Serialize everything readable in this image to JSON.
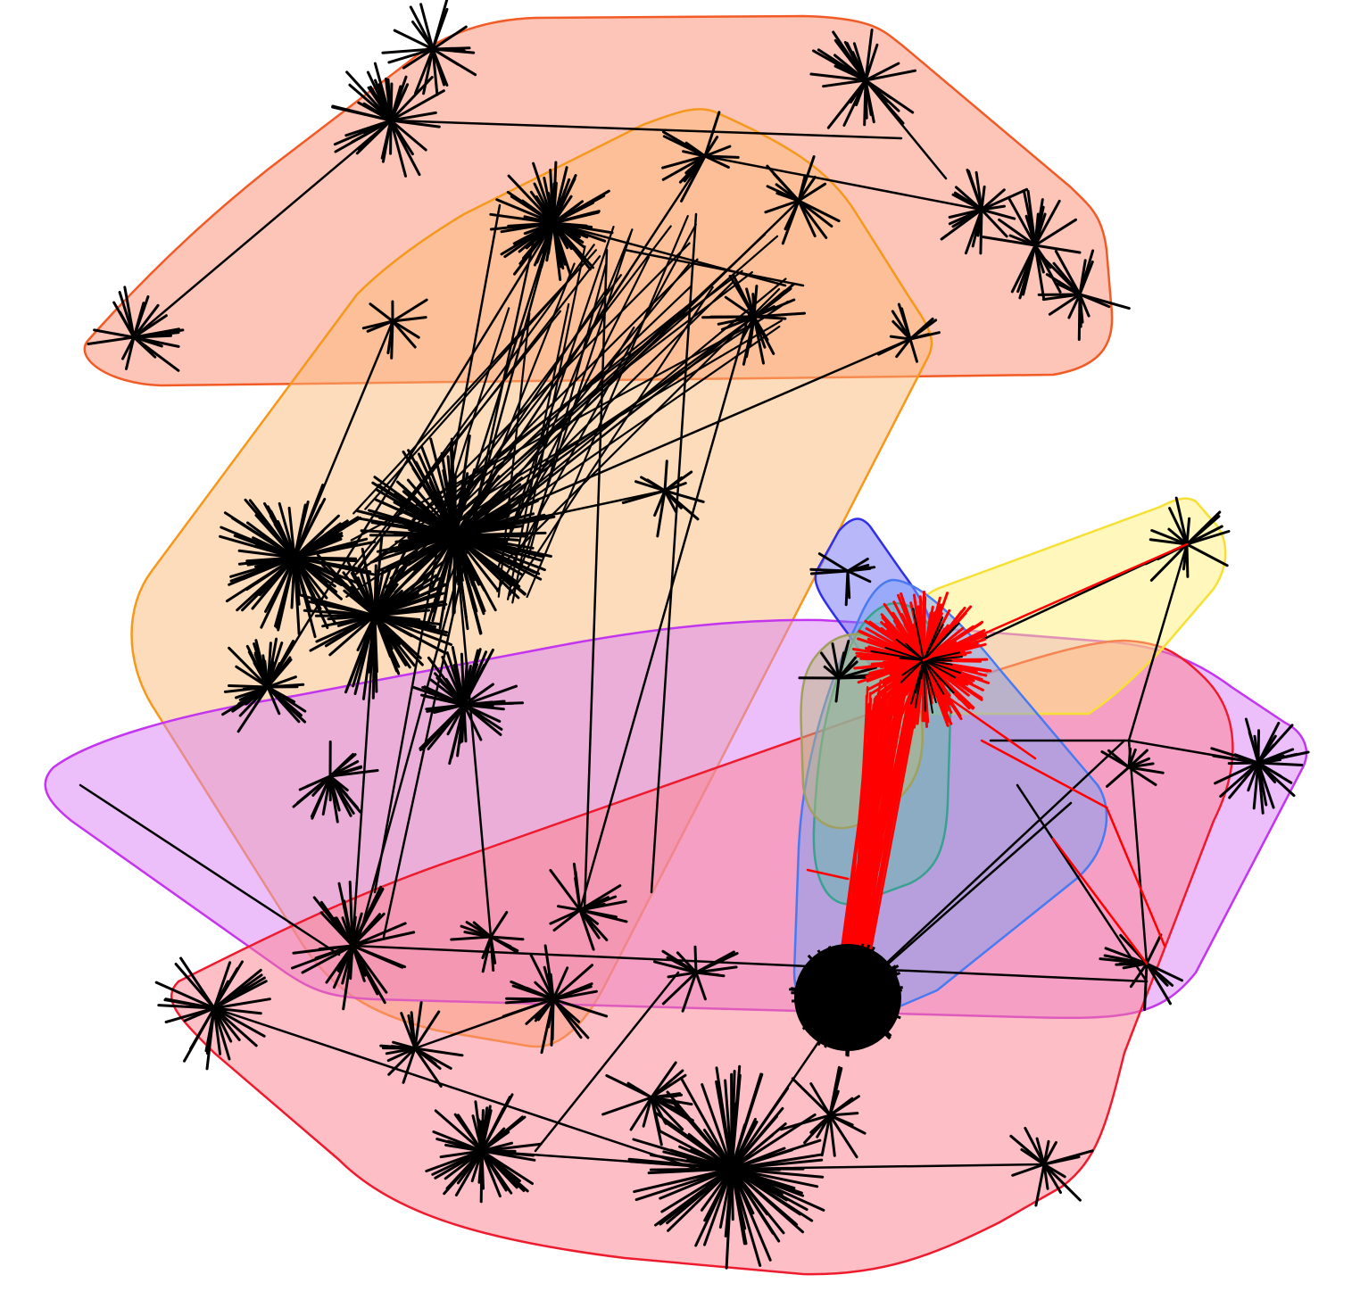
{
  "diagram": {
    "kind": "network-graph-with-cluster-hulls",
    "edge_colors": {
      "default": "#000000",
      "highlight": "#ff0000"
    },
    "groups": [
      {
        "id": "top-cluster",
        "fill": "#f98b6f",
        "stroke": "#f25a26"
      },
      {
        "id": "upper-left-cluster",
        "fill": "#fbb977",
        "stroke": "#f5981b"
      },
      {
        "id": "purple-band-cluster",
        "fill": "#d980f5",
        "stroke": "#c335ee"
      },
      {
        "id": "lower-red-cluster",
        "fill": "#fb7f8c",
        "stroke": "#ee1b2e"
      },
      {
        "id": "yellow-branch-cluster",
        "fill": "#fff07a",
        "stroke": "#f7e035"
      },
      {
        "id": "blue-narrow-cluster",
        "fill": "#6f6ff5",
        "stroke": "#3030e8"
      },
      {
        "id": "light-blue-cluster",
        "fill": "#7a9ef7",
        "stroke": "#4a7af0"
      },
      {
        "id": "teal-cluster",
        "fill": "#5fb9a8",
        "stroke": "#3aa08f"
      },
      {
        "id": "olive-cluster",
        "fill": "#b8b87a",
        "stroke": "#a0a060"
      }
    ]
  }
}
